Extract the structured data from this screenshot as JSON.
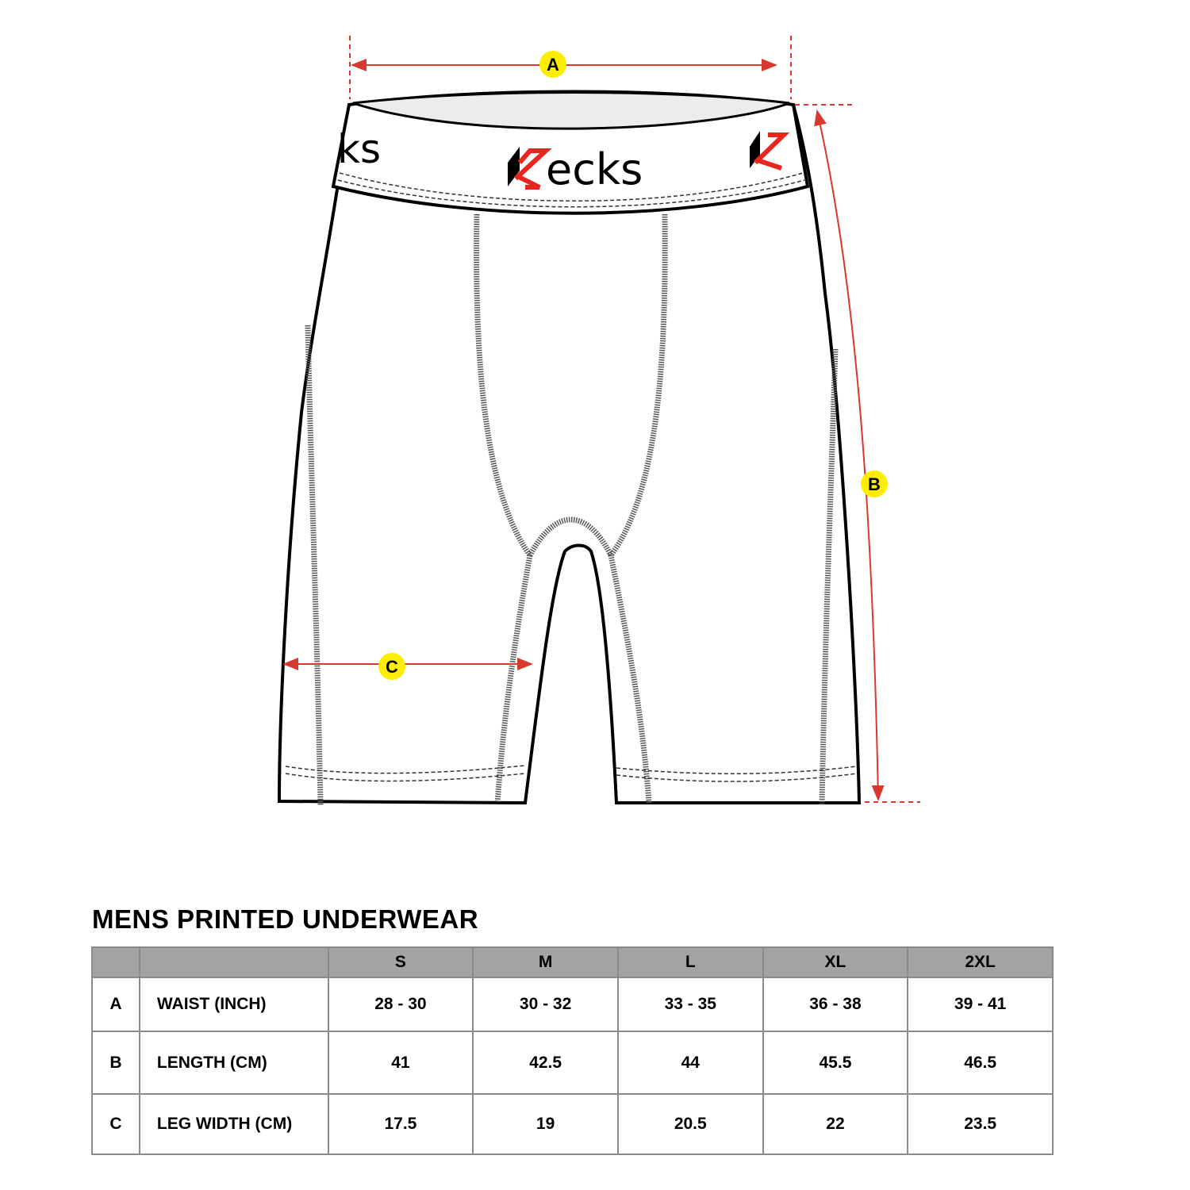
{
  "brand": {
    "logo_text": "Kecks",
    "colors": {
      "accent_red": "#e8251f",
      "marker_yellow": "#ffee00",
      "dimension_line": "#d9382f"
    }
  },
  "markers": {
    "a": "A",
    "b": "B",
    "c": "C"
  },
  "table": {
    "title": "MENS PRINTED UNDERWEAR",
    "header": [
      "",
      "",
      "S",
      "M",
      "L",
      "XL",
      "2XL"
    ],
    "rows": [
      {
        "key": "A",
        "label": "WAIST (INCH)",
        "values": [
          "28 - 30",
          "30 - 32",
          "33 - 35",
          "36 - 38",
          "39 - 41"
        ]
      },
      {
        "key": "B",
        "label": "LENGTH (CM)",
        "values": [
          "41",
          "42.5",
          "44",
          "45.5",
          "46.5"
        ]
      },
      {
        "key": "C",
        "label": "LEG WIDTH (CM)",
        "values": [
          "17.5",
          "19",
          "20.5",
          "22",
          "23.5"
        ]
      }
    ]
  }
}
